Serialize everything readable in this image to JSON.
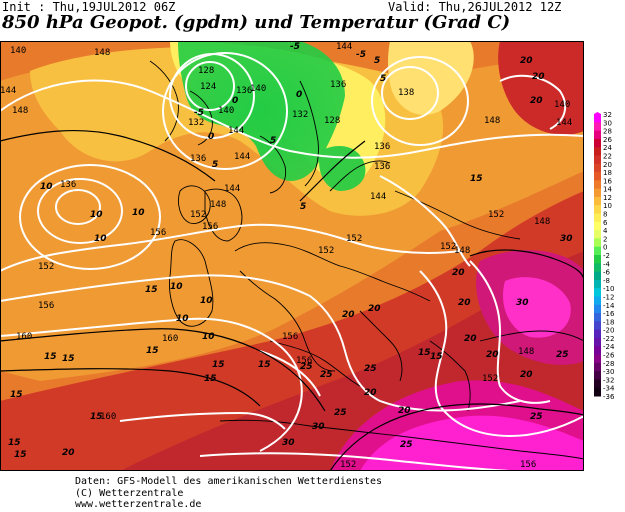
{
  "header": {
    "init": "Init : Thu,19JUL2012 06Z",
    "valid": "Valid: Thu,26JUL2012 12Z",
    "title": "850 hPa Geopot. (gpdm) und Temperatur (Grad C)"
  },
  "footer": {
    "line1": "Daten: GFS-Modell des amerikanischen Wetterdienstes",
    "line2": "(C) Wetterzentrale",
    "line3": "www.wetterzentrale.de"
  },
  "colorbar": {
    "labels": [
      "32",
      "30",
      "28",
      "26",
      "24",
      "22",
      "20",
      "18",
      "16",
      "14",
      "12",
      "10",
      "8",
      "6",
      "4",
      "2",
      "0",
      "-2",
      "-4",
      "-6",
      "-8",
      "-10",
      "-12",
      "-14",
      "-16",
      "-18",
      "-20",
      "-22",
      "-24",
      "-26",
      "-28",
      "-30",
      "-32",
      "-34",
      "-36"
    ],
    "colors": [
      "#ff00ff",
      "#ff1ab4",
      "#e6007d",
      "#cc0033",
      "#c81e1e",
      "#d23228",
      "#dc4628",
      "#e65a28",
      "#ee7a2a",
      "#f59a30",
      "#fbbc3c",
      "#ffd84a",
      "#ffee55",
      "#ffff66",
      "#e6ff66",
      "#aaff55",
      "#55ee55",
      "#22cc44",
      "#11bb66",
      "#00aa88",
      "#00b4b4",
      "#00c8dc",
      "#11aaee",
      "#2288ee",
      "#3366dd",
      "#4444cc",
      "#5522bb",
      "#6611aa",
      "#770099",
      "#880088",
      "#660066",
      "#440044",
      "#220022",
      "#110011"
    ]
  },
  "map_labels": {
    "geopotential": [
      "140",
      "148",
      "144",
      "148",
      "128",
      "124",
      "132",
      "136",
      "140",
      "144",
      "144",
      "136",
      "140",
      "136",
      "132",
      "128",
      "144",
      "136",
      "138",
      "148",
      "144",
      "140",
      "136",
      "144",
      "144",
      "148",
      "156",
      "152",
      "152",
      "152",
      "148",
      "152",
      "160",
      "156",
      "156",
      "160",
      "160",
      "148",
      "152",
      "156",
      "152",
      "156",
      "136",
      "156",
      "152",
      "148",
      "152"
    ],
    "temperature": [
      "-5",
      "0",
      "0",
      "-5",
      "-5",
      "0",
      "5",
      "5",
      "5",
      "5",
      "5",
      "10",
      "10",
      "10",
      "10",
      "10",
      "10",
      "15",
      "15",
      "15",
      "15",
      "15",
      "15",
      "15",
      "15",
      "15",
      "15",
      "20",
      "20",
      "20",
      "20",
      "20",
      "20",
      "20",
      "20",
      "20",
      "20",
      "20",
      "25",
      "25",
      "25",
      "25",
      "25",
      "25",
      "30",
      "30",
      "30",
      "30",
      "20",
      "25",
      "15",
      "15",
      "10",
      "10",
      "15",
      "15",
      "20"
    ]
  },
  "colors": {
    "contour_geopot": "#ffffff",
    "contour_temp": "#000000",
    "coast": "#000000"
  }
}
